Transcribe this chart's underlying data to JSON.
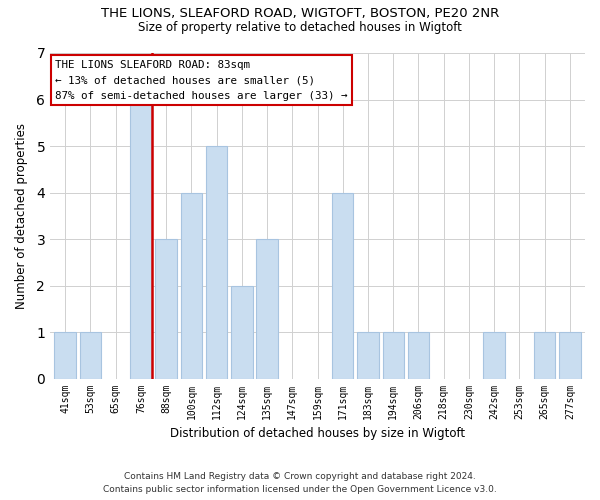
{
  "title": "THE LIONS, SLEAFORD ROAD, WIGTOFT, BOSTON, PE20 2NR",
  "subtitle": "Size of property relative to detached houses in Wigtoft",
  "xlabel": "Distribution of detached houses by size in Wigtoft",
  "ylabel": "Number of detached properties",
  "footnote1": "Contains HM Land Registry data © Crown copyright and database right 2024.",
  "footnote2": "Contains public sector information licensed under the Open Government Licence v3.0.",
  "bins": [
    "41sqm",
    "53sqm",
    "65sqm",
    "76sqm",
    "88sqm",
    "100sqm",
    "112sqm",
    "124sqm",
    "135sqm",
    "147sqm",
    "159sqm",
    "171sqm",
    "183sqm",
    "194sqm",
    "206sqm",
    "218sqm",
    "230sqm",
    "242sqm",
    "253sqm",
    "265sqm",
    "277sqm"
  ],
  "counts": [
    1,
    1,
    0,
    6,
    3,
    4,
    5,
    2,
    3,
    0,
    0,
    4,
    1,
    1,
    1,
    0,
    0,
    1,
    0,
    1,
    1
  ],
  "bar_color": "#c9ddf0",
  "bar_edge_color": "#a8c4e0",
  "highlight_bar_index": 3,
  "highlight_line_color": "#cc0000",
  "annotation_line1": "THE LIONS SLEAFORD ROAD: 83sqm",
  "annotation_line2": "← 13% of detached houses are smaller (5)",
  "annotation_line3": "87% of semi-detached houses are larger (33) →",
  "ylim": [
    0,
    7
  ],
  "yticks": [
    0,
    1,
    2,
    3,
    4,
    5,
    6,
    7
  ],
  "background_color": "#ffffff",
  "grid_color": "#d0d0d0"
}
